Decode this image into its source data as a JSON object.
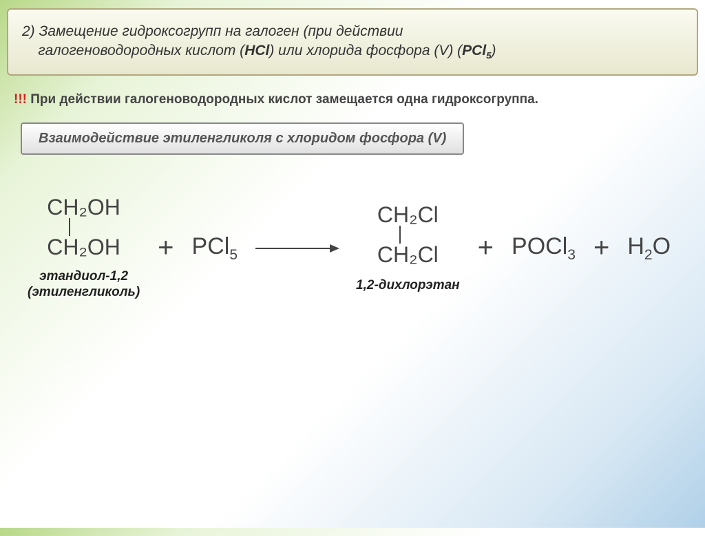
{
  "header": {
    "line1_prefix": "2) Замещение гидроксогрупп на галоген (при действии",
    "line2_prefix": "галогеноводородных кислот (",
    "hcl": "HCl",
    "line2_mid": ") или хлорида фосфора (V) (",
    "pcl5_pre": "PCl",
    "pcl5_sub": "5",
    "line2_end": ")"
  },
  "warning": {
    "bangs": "!!!",
    "text": " При действии галогеноводородных кислот замещается одна гидроксогруппа."
  },
  "subbox": "Взаимодействие этиленгликоля с хлоридом фосфора (V)",
  "equation": {
    "reactant1": {
      "row1": "CH₂OH",
      "row2": "CH₂OH",
      "label1": "этандиол-1,2",
      "label2": "(этиленгликоль)"
    },
    "plus": "+",
    "reagent_pre": "PCl",
    "reagent_sub": "5",
    "product1": {
      "row1": "CH₂Cl",
      "row2": "CH₂Cl",
      "label": "1,2-дихлорэтан"
    },
    "product2_pre": "POCl",
    "product2_sub": "3",
    "product3_pre": "H",
    "product3_sub": "2",
    "product3_post": "O"
  },
  "colors": {
    "header_border": "#b0a880",
    "warning_red": "#d02020",
    "text_dark": "#444444"
  }
}
